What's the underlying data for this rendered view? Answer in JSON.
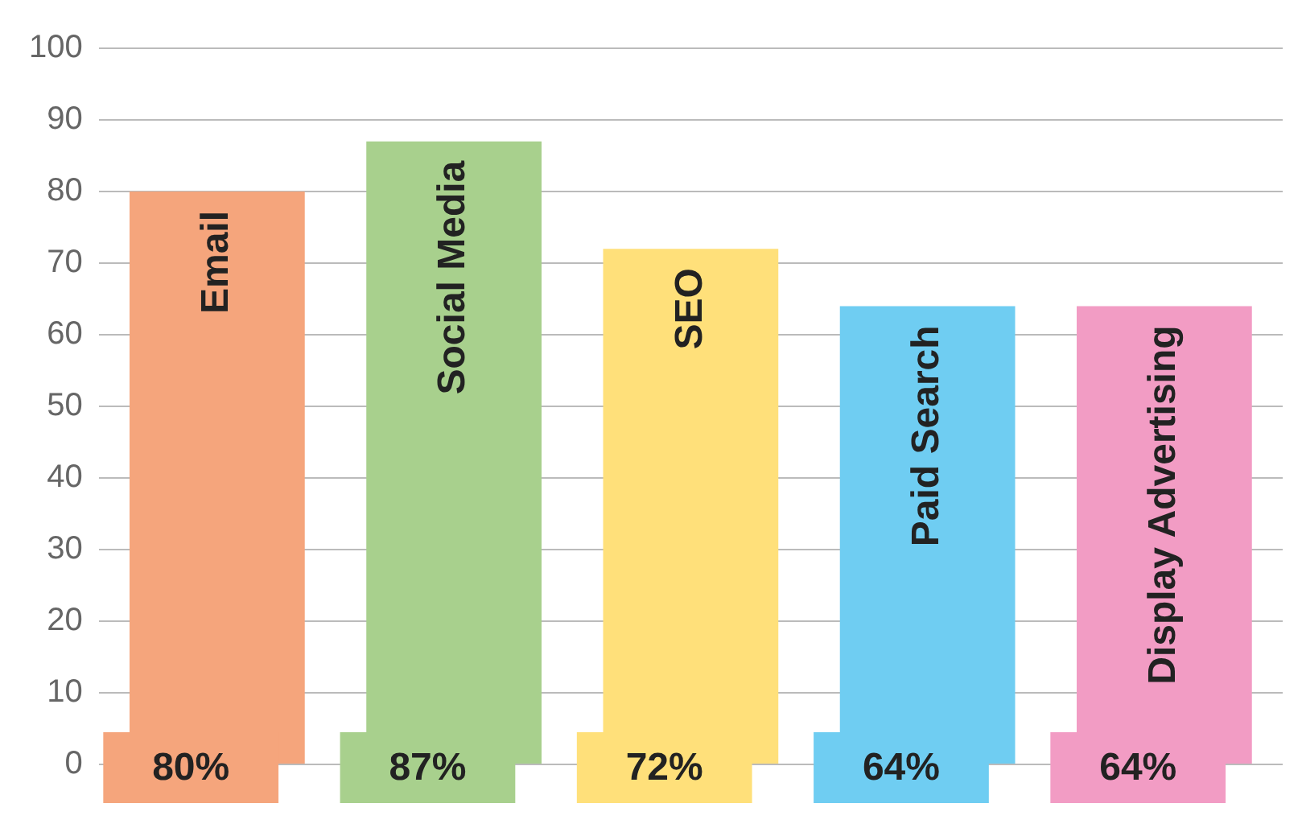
{
  "chart_data": {
    "type": "bar",
    "categories": [
      "Email",
      "Social Media",
      "SEO",
      "Paid Search",
      "Display Advertising"
    ],
    "values": [
      80,
      87,
      72,
      64,
      64
    ],
    "colors": [
      "#f5a57c",
      "#a8d08d",
      "#ffe07a",
      "#6fcdf2",
      "#f29cc4"
    ],
    "value_labels": [
      "80%",
      "87%",
      "72%",
      "64%",
      "64%"
    ],
    "ylim": [
      0,
      100
    ],
    "yticks": [
      0,
      10,
      20,
      30,
      40,
      50,
      60,
      70,
      80,
      90,
      100
    ],
    "grid": "y",
    "legend": false
  }
}
